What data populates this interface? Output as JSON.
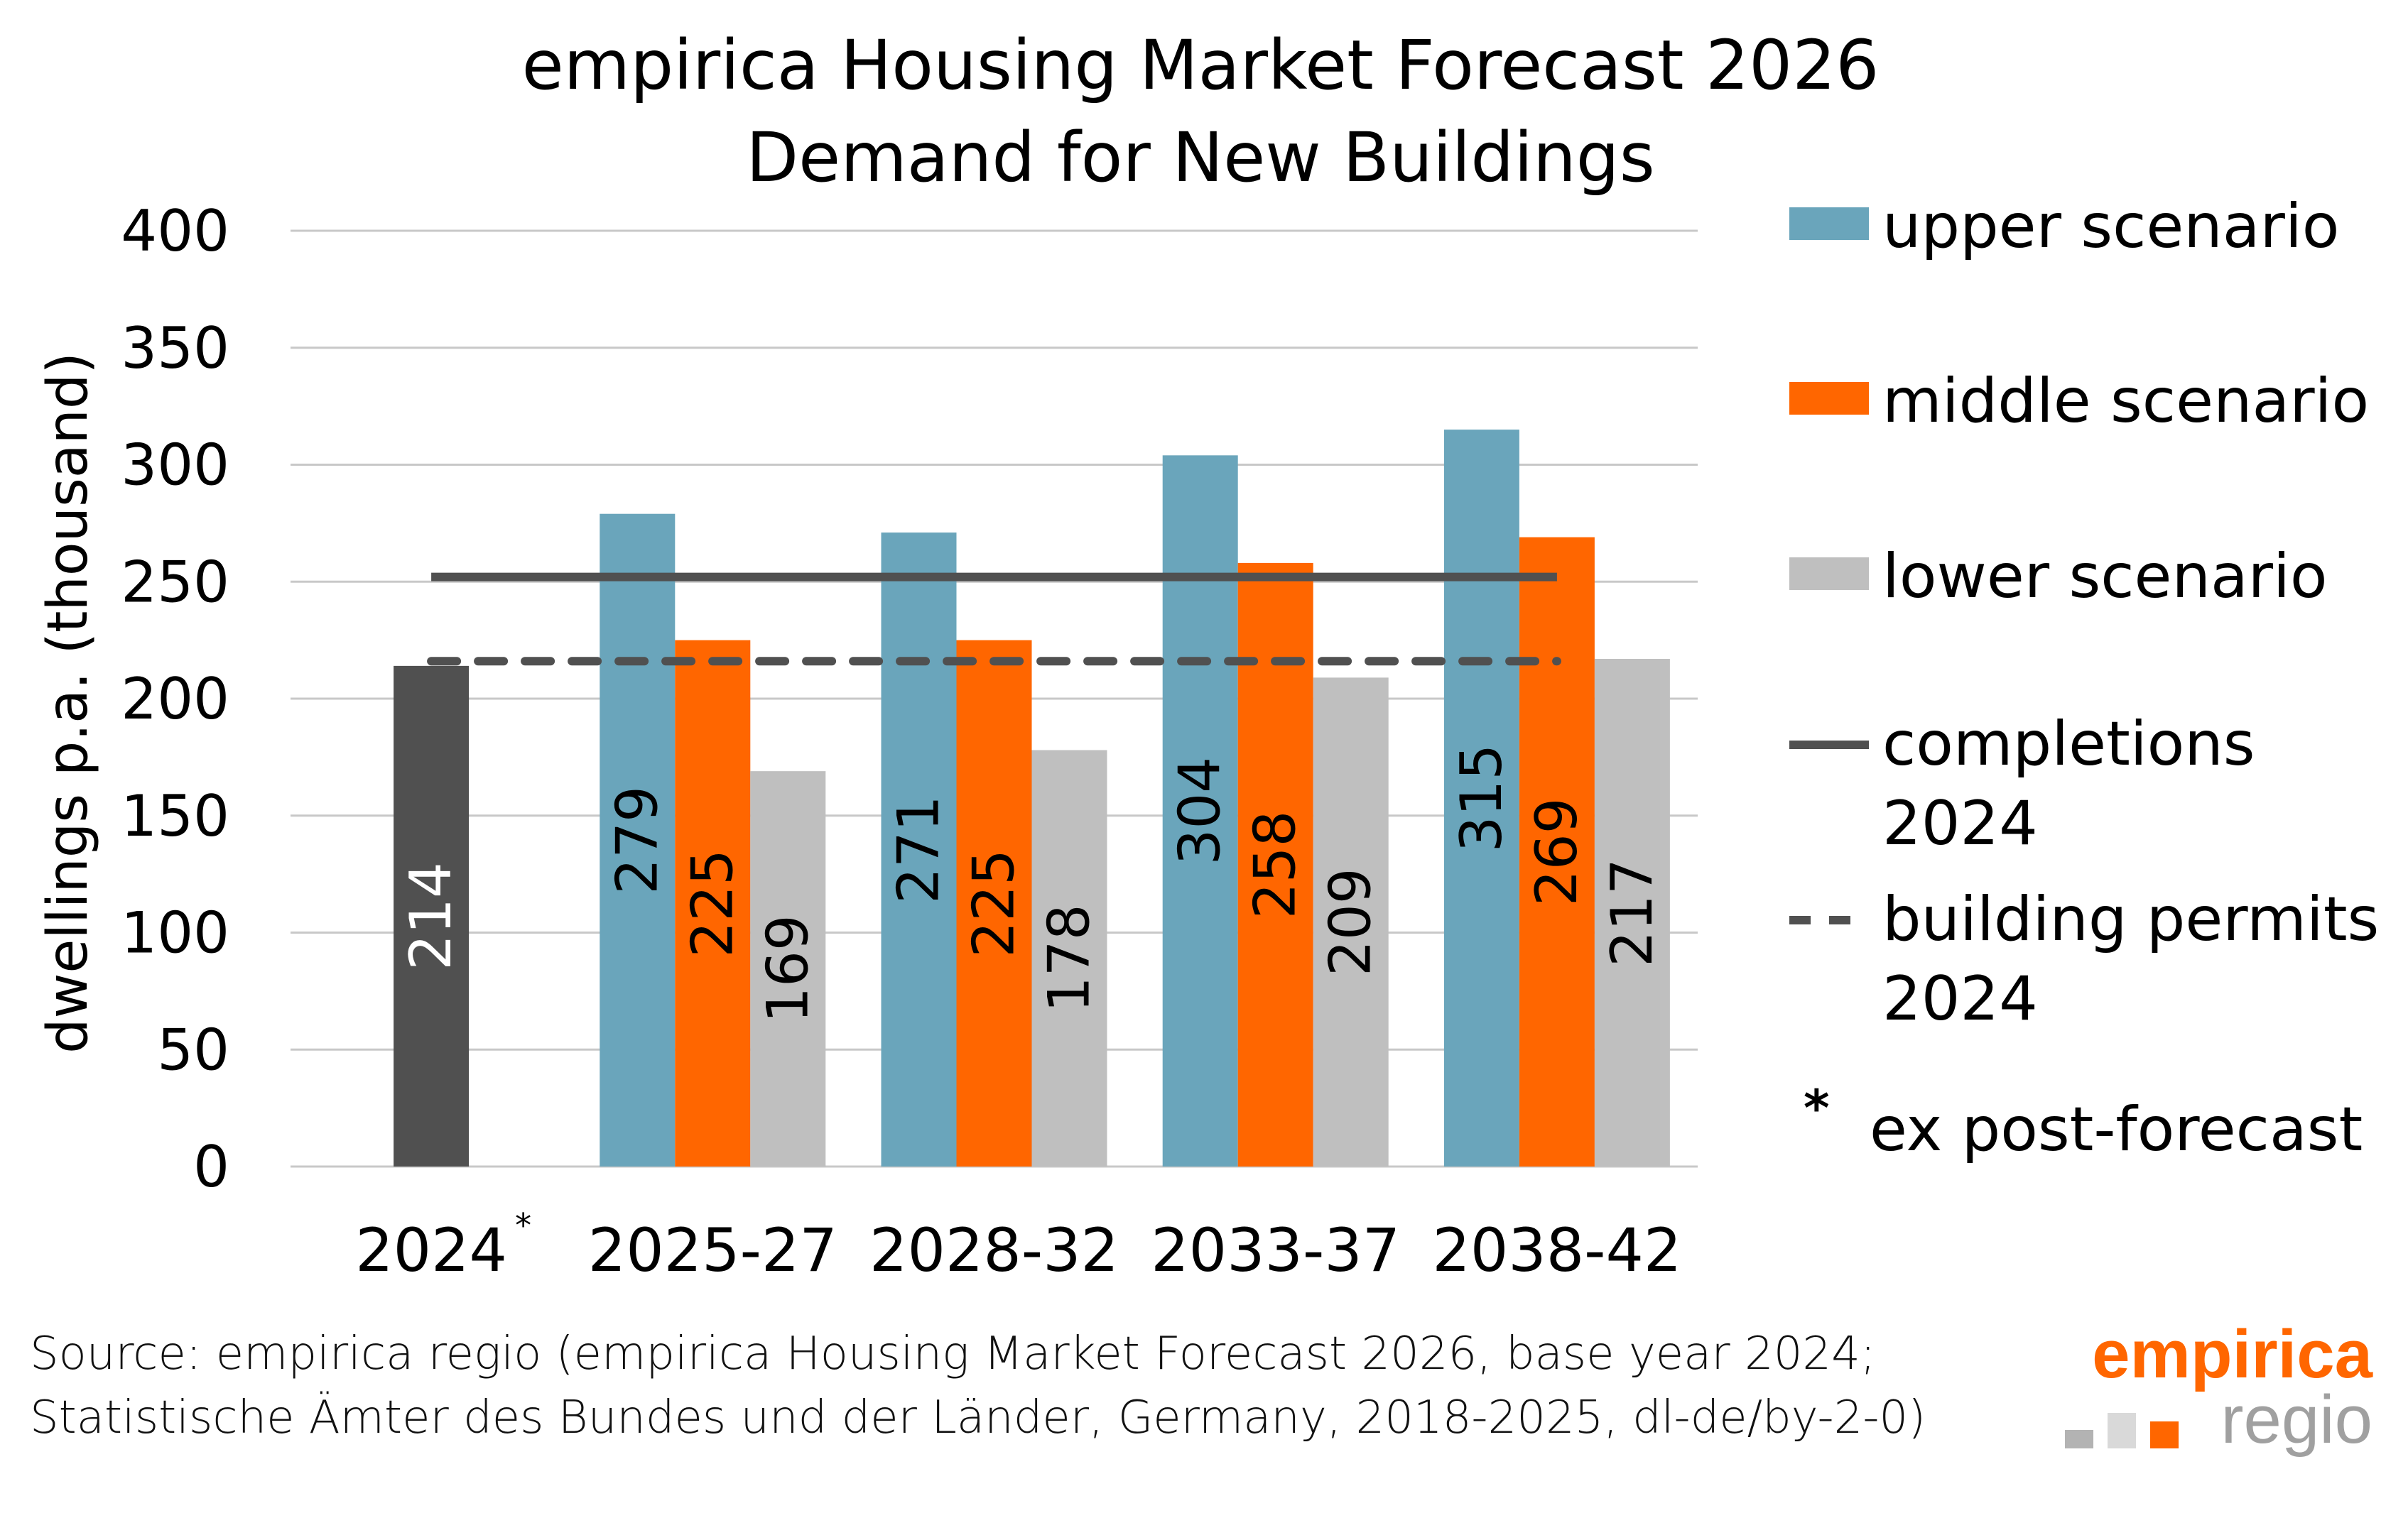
{
  "chart_data": {
    "type": "bar",
    "title": [
      "empirica Housing Market Forecast 2026",
      "Demand for New Buildings"
    ],
    "ylabel": "dwellings p.a. (thousand)",
    "xlabel": "",
    "ylim": [
      0,
      400
    ],
    "yticks": [
      0,
      50,
      100,
      150,
      200,
      250,
      300,
      350,
      400
    ],
    "grid": true,
    "legend_position": "right",
    "categories": [
      "2024",
      "2025-27",
      "2028-32",
      "2033-37",
      "2038-42"
    ],
    "category_superscripts": [
      "*",
      "",
      "",
      "",
      ""
    ],
    "actual_2024": {
      "value": 214,
      "color": "#505050"
    },
    "series": [
      {
        "name": "upper scenario",
        "color": "#6aa5bb",
        "values": [
          null,
          279,
          271,
          304,
          315
        ]
      },
      {
        "name": "middle scenario",
        "color": "#ff6600",
        "values": [
          null,
          225,
          225,
          258,
          269
        ]
      },
      {
        "name": "lower scenario",
        "color": "#bfbfbf",
        "values": [
          null,
          169,
          178,
          209,
          217
        ]
      }
    ],
    "reference_lines": [
      {
        "name": "completions 2024",
        "name_lines": [
          "completions",
          "2024"
        ],
        "value": 252,
        "style": "solid",
        "color": "#505050"
      },
      {
        "name": "building permits 2024",
        "name_lines": [
          "building permits",
          "2024"
        ],
        "value": 216,
        "style": "dashed",
        "color": "#505050"
      }
    ],
    "footnote": {
      "symbol": "*",
      "text": "ex post-forecast"
    }
  },
  "source": "Source: empirica regio (empirica Housing Market Forecast 2026, base year 2024; Statistische Ämter des Bundes und der Länder, Germany, 2018-2025, dl-de/by-2-0)",
  "logo": {
    "main": "empirica",
    "sub": "regio",
    "colors": [
      "#b3b3b3",
      "#d9d9d9",
      "#ff6600"
    ]
  }
}
